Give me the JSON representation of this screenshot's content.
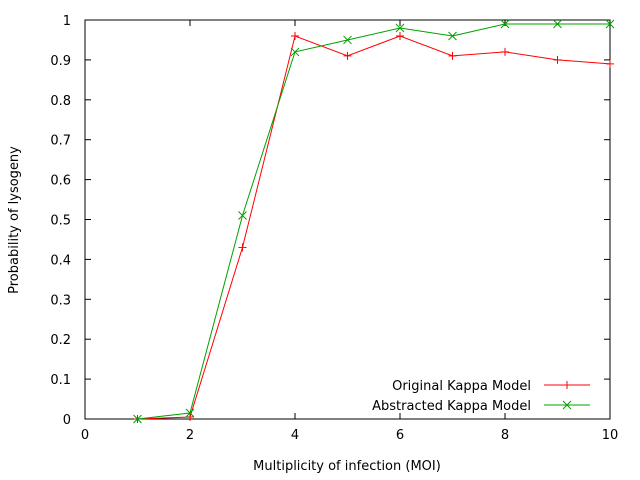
{
  "chart_data": {
    "type": "line",
    "xlabel": "Multiplicity of infection (MOI)",
    "ylabel": "Probability of lysogeny",
    "xlim": [
      0,
      10
    ],
    "ylim": [
      0,
      1
    ],
    "x_ticks": [
      0,
      2,
      4,
      6,
      8,
      10
    ],
    "x_tick_labels": [
      "0",
      "2",
      "4",
      "6",
      "8",
      "10"
    ],
    "y_ticks": [
      0,
      0.1,
      0.2,
      0.3,
      0.4,
      0.5,
      0.6,
      0.7,
      0.8,
      0.9,
      1
    ],
    "y_tick_labels": [
      "0",
      "0.1",
      "0.2",
      "0.3",
      "0.4",
      "0.5",
      "0.6",
      "0.7",
      "0.8",
      "0.9",
      "1"
    ],
    "grid": false,
    "legend_position": "bottom-right",
    "series": [
      {
        "name": "Original Kappa Model",
        "color": "#ff0000",
        "marker": "plus",
        "x": [
          1,
          2,
          3,
          4,
          5,
          6,
          7,
          8,
          9,
          10
        ],
        "y": [
          0,
          0.005,
          0.43,
          0.96,
          0.91,
          0.96,
          0.91,
          0.92,
          0.9,
          0.89
        ]
      },
      {
        "name": "Abstracted Kappa Model",
        "color": "#00a000",
        "marker": "cross",
        "x": [
          1,
          2,
          3,
          4,
          5,
          6,
          7,
          8,
          9,
          10
        ],
        "y": [
          0,
          0.015,
          0.51,
          0.92,
          0.95,
          0.98,
          0.96,
          0.99,
          0.99,
          0.99
        ]
      }
    ]
  }
}
